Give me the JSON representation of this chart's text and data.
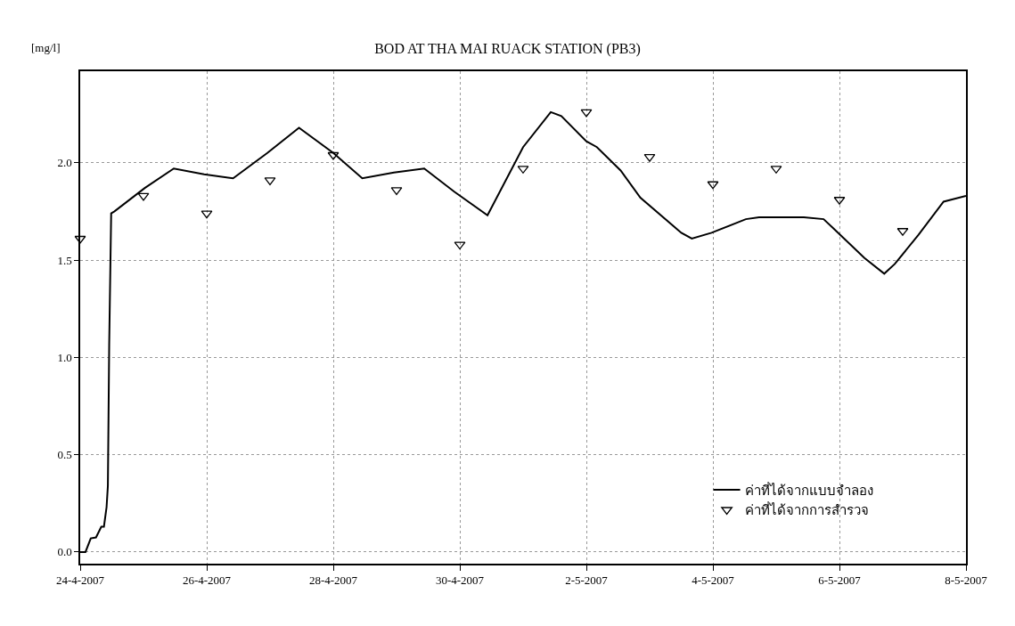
{
  "chart_data": {
    "type": "line",
    "title": "BOD AT THA MAI RUACK STATION (PB3)",
    "ylabel": "[mg/l]",
    "xlim": [
      "2007-04-24",
      "2007-05-08"
    ],
    "xticks": [
      {
        "value": "2007-04-24",
        "label": "24-4-2007"
      },
      {
        "value": "2007-04-26",
        "label": "26-4-2007"
      },
      {
        "value": "2007-04-28",
        "label": "28-4-2007"
      },
      {
        "value": "2007-04-30",
        "label": "30-4-2007"
      },
      {
        "value": "2007-05-02",
        "label": "2-5-2007"
      },
      {
        "value": "2007-05-04",
        "label": "4-5-2007"
      },
      {
        "value": "2007-05-06",
        "label": "6-5-2007"
      },
      {
        "value": "2007-05-08",
        "label": "8-5-2007"
      }
    ],
    "ylim": [
      -0.06,
      2.47
    ],
    "yticks": [
      {
        "value": 0,
        "label": "0.0"
      },
      {
        "value": 0.5,
        "label": "0.5"
      },
      {
        "value": 1,
        "label": "1.0"
      },
      {
        "value": 1.5,
        "label": "1.5"
      },
      {
        "value": 2,
        "label": "2.0"
      }
    ],
    "grid": true,
    "legend": "bottom right",
    "series": [
      {
        "name": "ค่าที่ได้จากแบบจำลอง",
        "color": "#000000",
        "line_style": "solid",
        "marker": "none",
        "x": [
          "2007-04-24T00:00",
          "2007-04-24T02:00",
          "2007-04-24T04:00",
          "2007-04-24T06:00",
          "2007-04-24T08:00",
          "2007-04-24T09:00",
          "2007-04-24T10:00",
          "2007-04-24T10:30",
          "2007-04-24T10:45",
          "2007-04-24T11:00",
          "2007-04-24T11:45",
          "2007-04-24T13:00",
          "2007-04-25T00:30",
          "2007-04-25T11:30",
          "2007-04-25T23:00",
          "2007-04-26T10:00",
          "2007-04-26T23:00",
          "2007-04-27T11:00",
          "2007-04-28T00:00",
          "2007-04-28T11:00",
          "2007-04-28T23:00",
          "2007-04-29T10:30",
          "2007-04-29T22:00",
          "2007-04-30T10:30",
          "2007-05-01T00:00",
          "2007-05-01T10:30",
          "2007-05-01T14:30",
          "2007-05-02T00:00",
          "2007-05-02T04:00",
          "2007-05-02T13:00",
          "2007-05-02T20:30",
          "2007-05-03T12:00",
          "2007-05-03T16:00",
          "2007-05-03T23:30",
          "2007-05-04T12:30",
          "2007-05-04T17:30",
          "2007-05-05T10:30",
          "2007-05-05T18:00",
          "2007-05-05T23:30",
          "2007-05-06T09:30",
          "2007-05-06T17:00",
          "2007-05-06T21:00",
          "2007-05-07T06:00",
          "2007-05-07T15:30",
          "2007-05-08T00:00"
        ],
        "values": [
          0.0,
          0.0,
          0.07,
          0.075,
          0.13,
          0.13,
          0.23,
          0.34,
          0.7,
          1.07,
          1.74,
          1.75,
          1.87,
          1.97,
          1.94,
          1.92,
          2.05,
          2.18,
          2.05,
          1.92,
          1.95,
          1.97,
          1.85,
          1.73,
          2.08,
          2.26,
          2.24,
          2.11,
          2.08,
          1.96,
          1.82,
          1.64,
          1.61,
          1.64,
          1.71,
          1.72,
          1.72,
          1.71,
          1.64,
          1.51,
          1.43,
          1.48,
          1.63,
          1.8,
          1.83
        ]
      },
      {
        "name": "ค่าที่ได้จากการสำรวจ",
        "type": "scatter",
        "color": "#000000",
        "marker": "triangle",
        "x": [
          "2007-04-24",
          "2007-04-25",
          "2007-04-26",
          "2007-04-27",
          "2007-04-28",
          "2007-04-29",
          "2007-04-30",
          "2007-05-01",
          "2007-05-02",
          "2007-05-03",
          "2007-05-04",
          "2007-05-05",
          "2007-05-06",
          "2007-05-07"
        ],
        "values": [
          1.61,
          1.83,
          1.74,
          1.91,
          2.04,
          1.86,
          1.58,
          1.97,
          2.26,
          2.03,
          1.89,
          1.97,
          1.81,
          1.65
        ]
      }
    ]
  }
}
